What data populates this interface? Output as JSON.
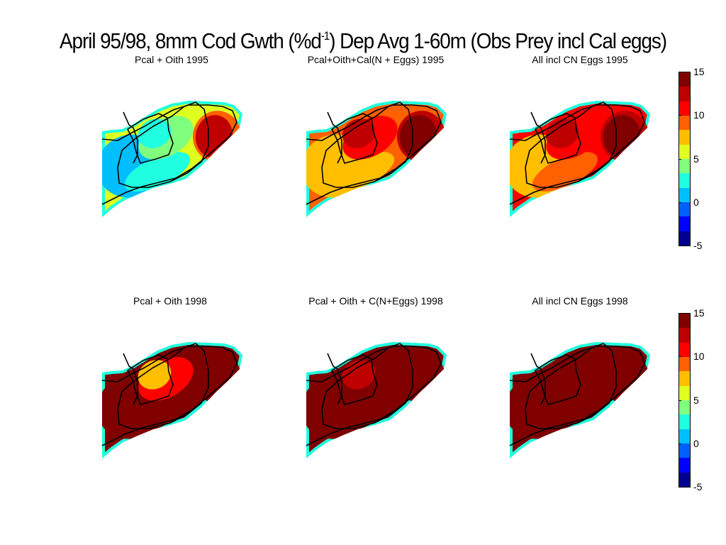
{
  "figure": {
    "title_pre": "April 95/98, 8mm Cod Gwth (%d",
    "title_sup": "-1",
    "title_post": ") Dep Avg 1-60m (Obs Prey incl Cal eggs)"
  },
  "chart_data": {
    "type": "heatmap",
    "title": "April 95/98, 8mm Cod Gwth (%d-1) Dep Avg 1-60m (Obs Prey incl Cal eggs)",
    "colorbar": {
      "min": -5,
      "max": 15,
      "ticks": [
        "15",
        "10",
        "5",
        "0",
        "-5"
      ],
      "colormap": "jet",
      "colors": [
        "#00008f",
        "#0000ff",
        "#005fff",
        "#00bfff",
        "#20ffdf",
        "#80ff7f",
        "#dfff20",
        "#ffbf00",
        "#ff6000",
        "#ff0000",
        "#bf0000",
        "#800000"
      ]
    },
    "panels": [
      {
        "title": "Pcal + Oith 1995",
        "year": "1995",
        "approx_values": {
          "west_bank": 0,
          "northeast_bank": 13,
          "central_bank": 3,
          "margins": 6
        }
      },
      {
        "title": "Pcal+Oith+Cal(N + Eggs) 1995",
        "year": "1995",
        "approx_values": {
          "west_bank": 7,
          "northeast_bank": 15,
          "central_bank": 12,
          "margins": 9
        }
      },
      {
        "title": "All incl CN Eggs 1995",
        "year": "1995",
        "approx_values": {
          "west_bank": 8,
          "northeast_bank": 15,
          "central_bank": 13,
          "margins": 10
        }
      },
      {
        "title": "Pcal + Oith 1998",
        "year": "1998",
        "approx_values": {
          "west_bank": 15,
          "northeast_bank": 15,
          "central_bank": 8,
          "margins": 15
        }
      },
      {
        "title": "Pcal + Oith + C(N+Eggs) 1998",
        "year": "1998",
        "approx_values": {
          "west_bank": 15,
          "northeast_bank": 15,
          "central_bank": 13,
          "margins": 15
        }
      },
      {
        "title": "All incl CN Eggs 1998",
        "year": "1998",
        "approx_values": {
          "west_bank": 15,
          "northeast_bank": 15,
          "central_bank": 15,
          "margins": 15
        }
      }
    ]
  }
}
